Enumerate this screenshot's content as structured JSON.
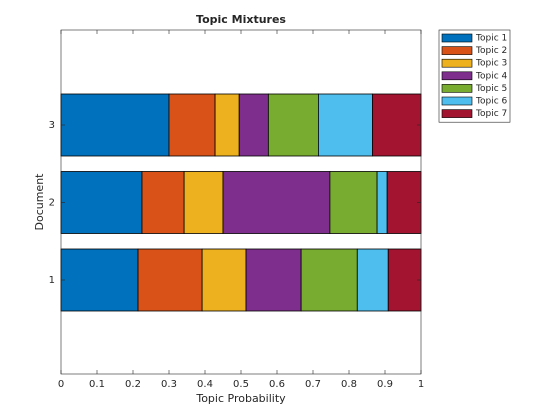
{
  "chart_data": {
    "type": "stacked-barh",
    "title": "Topic Mixtures",
    "xlabel": "Topic Probability",
    "ylabel": "Document",
    "categories": [
      "1",
      "2",
      "3"
    ],
    "series": [
      {
        "name": "Topic 1",
        "color": "#0072BD",
        "values": [
          0.214,
          0.225,
          0.3
        ]
      },
      {
        "name": "Topic 2",
        "color": "#D95319",
        "values": [
          0.178,
          0.117,
          0.128
        ]
      },
      {
        "name": "Topic 3",
        "color": "#EDB120",
        "values": [
          0.122,
          0.108,
          0.067
        ]
      },
      {
        "name": "Topic 4",
        "color": "#7E2F8E",
        "values": [
          0.153,
          0.297,
          0.081
        ]
      },
      {
        "name": "Topic 5",
        "color": "#77AC30",
        "values": [
          0.156,
          0.131,
          0.139
        ]
      },
      {
        "name": "Topic 6",
        "color": "#4DBEEE",
        "values": [
          0.086,
          0.028,
          0.15
        ]
      },
      {
        "name": "Topic 7",
        "color": "#A2142F",
        "values": [
          0.091,
          0.094,
          0.135
        ]
      }
    ],
    "xlim": [
      0,
      1
    ],
    "xticks": [
      0,
      0.1,
      0.2,
      0.3,
      0.4,
      0.5,
      0.6,
      0.7,
      0.8,
      0.9,
      1
    ],
    "grid": false,
    "legend": "northeastoutside"
  }
}
